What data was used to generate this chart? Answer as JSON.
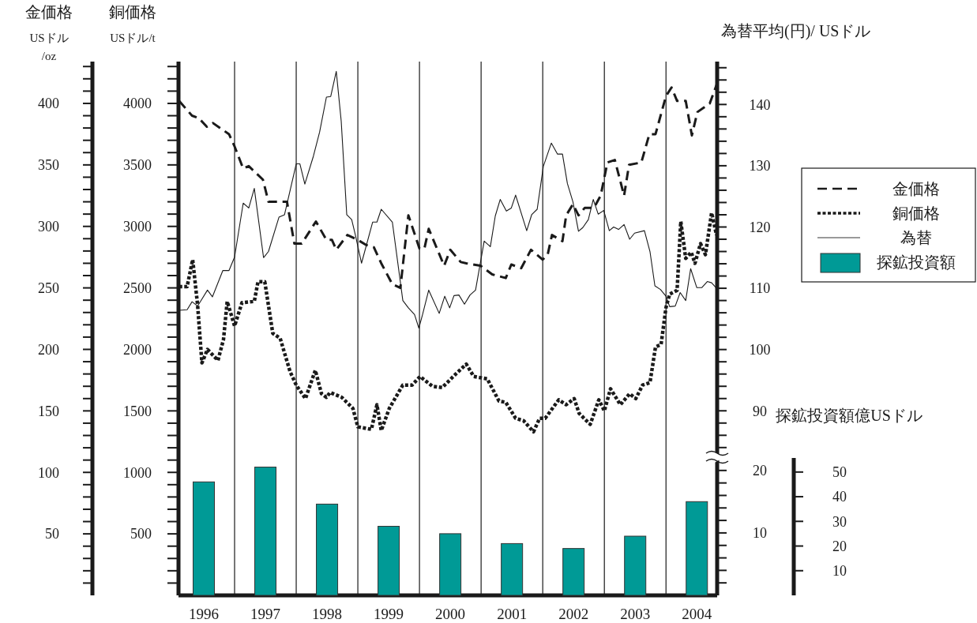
{
  "chart_data": [
    {
      "type": "line",
      "ylabel": "金価格\nUSドル\n/oz",
      "y2label": "銅価格\nUSドル/t",
      "y3label": "為替平均(円)/ USドル",
      "xlim": [
        1996.09,
        2004.83
      ],
      "xticks": [
        {
          "value": 1996.5,
          "label": "1996"
        },
        {
          "value": 1997.5,
          "label": "1997"
        },
        {
          "value": 1998.5,
          "label": "1998"
        },
        {
          "value": 1999.5,
          "label": "1999"
        },
        {
          "value": 2000.5,
          "label": "2000"
        },
        {
          "value": 2001.5,
          "label": "2001"
        },
        {
          "value": 2002.5,
          "label": "2002"
        },
        {
          "value": 2003.5,
          "label": "2003"
        },
        {
          "value": 2004.5,
          "label": "2004"
        }
      ],
      "ylim": [
        0,
        434
      ],
      "yticks": [
        {
          "value": 10,
          "label": null
        },
        {
          "value": 20,
          "label": null
        },
        {
          "value": 30,
          "label": null
        },
        {
          "value": 40,
          "label": null
        },
        50,
        {
          "value": 60,
          "label": null
        },
        {
          "value": 70,
          "label": null
        },
        {
          "value": 80,
          "label": null
        },
        {
          "value": 90,
          "label": null
        },
        100,
        {
          "value": 110,
          "label": null
        },
        {
          "value": 120,
          "label": null
        },
        {
          "value": 130,
          "label": null
        },
        {
          "value": 140,
          "label": null
        },
        150,
        {
          "value": 160,
          "label": null
        },
        {
          "value": 170,
          "label": null
        },
        {
          "value": 180,
          "label": null
        },
        {
          "value": 190,
          "label": null
        },
        200,
        {
          "value": 210,
          "label": null
        },
        {
          "value": 220,
          "label": null
        },
        {
          "value": 230,
          "label": null
        },
        {
          "value": 240,
          "label": null
        },
        250,
        {
          "value": 260,
          "label": null
        },
        {
          "value": 270,
          "label": null
        },
        {
          "value": 280,
          "label": null
        },
        {
          "value": 290,
          "label": null
        },
        300,
        {
          "value": 310,
          "label": null
        },
        {
          "value": 320,
          "label": null
        },
        {
          "value": 330,
          "label": null
        },
        {
          "value": 340,
          "label": null
        },
        350,
        {
          "value": 360,
          "label": null
        },
        {
          "value": 370,
          "label": null
        },
        {
          "value": 380,
          "label": null
        },
        {
          "value": 390,
          "label": null
        },
        400,
        {
          "value": 410,
          "label": null
        },
        {
          "value": 420,
          "label": null
        },
        {
          "value": 430,
          "label": null
        }
      ],
      "y2lim": [
        0,
        4340
      ],
      "y2ticks": [
        {
          "value": 100,
          "label": null
        },
        {
          "value": 200,
          "label": null
        },
        {
          "value": 300,
          "label": null
        },
        {
          "value": 400,
          "label": null
        },
        500,
        {
          "value": 600,
          "label": null
        },
        {
          "value": 700,
          "label": null
        },
        {
          "value": 800,
          "label": null
        },
        {
          "value": 900,
          "label": null
        },
        1000,
        {
          "value": 1100,
          "label": null
        },
        {
          "value": 1200,
          "label": null
        },
        {
          "value": 1300,
          "label": null
        },
        {
          "value": 1400,
          "label": null
        },
        1500,
        {
          "value": 1600,
          "label": null
        },
        {
          "value": 1700,
          "label": null
        },
        {
          "value": 1800,
          "label": null
        },
        {
          "value": 1900,
          "label": null
        },
        2000,
        {
          "value": 2100,
          "label": null
        },
        {
          "value": 2200,
          "label": null
        },
        {
          "value": 2300,
          "label": null
        },
        {
          "value": 2400,
          "label": null
        },
        2500,
        {
          "value": 2600,
          "label": null
        },
        {
          "value": 2700,
          "label": null
        },
        {
          "value": 2800,
          "label": null
        },
        {
          "value": 2900,
          "label": null
        },
        3000,
        {
          "value": 3100,
          "label": null
        },
        {
          "value": 3200,
          "label": null
        },
        {
          "value": 3300,
          "label": null
        },
        {
          "value": 3400,
          "label": null
        },
        3500,
        {
          "value": 3600,
          "label": null
        },
        {
          "value": 3700,
          "label": null
        },
        {
          "value": 3800,
          "label": null
        },
        {
          "value": 3900,
          "label": null
        },
        4000,
        {
          "value": 4100,
          "label": null
        },
        {
          "value": 4200,
          "label": null
        },
        {
          "value": 4300,
          "label": null
        }
      ],
      "y3lim": [
        82.3,
        147
      ],
      "y3ticks": [
        {
          "value": 84,
          "label": null
        },
        {
          "value": 86,
          "label": null
        },
        {
          "value": 88,
          "label": null
        },
        90,
        {
          "value": 92,
          "label": null
        },
        {
          "value": 94,
          "label": null
        },
        {
          "value": 96,
          "label": null
        },
        {
          "value": 98,
          "label": null
        },
        100,
        {
          "value": 102,
          "label": null
        },
        {
          "value": 104,
          "label": null
        },
        {
          "value": 106,
          "label": null
        },
        {
          "value": 108,
          "label": null
        },
        110,
        {
          "value": 112,
          "label": null
        },
        {
          "value": 114,
          "label": null
        },
        {
          "value": 116,
          "label": null
        },
        {
          "value": 118,
          "label": null
        },
        120,
        {
          "value": 122,
          "label": null
        },
        {
          "value": 124,
          "label": null
        },
        {
          "value": 126,
          "label": null
        },
        {
          "value": 128,
          "label": null
        },
        130,
        {
          "value": 132,
          "label": null
        },
        {
          "value": 134,
          "label": null
        },
        {
          "value": 136,
          "label": null
        },
        {
          "value": 138,
          "label": null
        },
        140,
        {
          "value": 142,
          "label": null
        },
        {
          "value": 144,
          "label": null
        },
        {
          "value": 146,
          "label": null
        }
      ],
      "ref_lines": [
        {
          "axis": "x",
          "value": 1997,
          "color": "#1a1a1a"
        },
        {
          "axis": "x",
          "value": 1998,
          "color": "#1a1a1a"
        },
        {
          "axis": "x",
          "value": 1999,
          "color": "#1a1a1a"
        },
        {
          "axis": "x",
          "value": 2000,
          "color": "#1a1a1a"
        },
        {
          "axis": "x",
          "value": 2001,
          "color": "#1a1a1a"
        },
        {
          "axis": "x",
          "value": 2002,
          "color": "#1a1a1a"
        },
        {
          "axis": "x",
          "value": 2003,
          "color": "#1a1a1a"
        },
        {
          "axis": "x",
          "value": 2004,
          "color": "#1a1a1a"
        }
      ],
      "legend": "right",
      "series": [
        {
          "name": "金価格",
          "line_style": "dashed",
          "color": "#1a1a1a",
          "x": [
            1996.1,
            1996.31,
            1996.42,
            1996.55,
            1996.65,
            1996.91,
            1997.0,
            1997.14,
            1997.23,
            1997.46,
            1997.55,
            1997.85,
            1997.97,
            1998.09,
            1998.32,
            1998.49,
            1998.58,
            1998.65,
            1998.83,
            1999.0,
            1999.13,
            1999.26,
            1999.38,
            1999.56,
            1999.69,
            1999.82,
            2000.0,
            2000.08,
            2000.15,
            2000.4,
            2000.5,
            2000.67,
            2000.76,
            2000.99,
            2001.18,
            2001.4,
            2001.49,
            2001.65,
            2001.81,
            2002.0,
            2002.08,
            2002.15,
            2002.32,
            2002.38,
            2002.49,
            2002.58,
            2002.68,
            2002.83,
            2002.94,
            2003.05,
            2003.17,
            2003.32,
            2003.4,
            2003.6,
            2003.73,
            2003.83,
            2004.0,
            2004.09,
            2004.18,
            2004.32,
            2004.42,
            2004.51,
            2004.71,
            2004.82
          ],
          "values": [
            402,
            390,
            388,
            381,
            384,
            375,
            365,
            347,
            349,
            338,
            320,
            320,
            286,
            286,
            304,
            289,
            289,
            281,
            293,
            289,
            285,
            283,
            270,
            253,
            250,
            309,
            282,
            282,
            298,
            268,
            281,
            271,
            270,
            268,
            261,
            258,
            269,
            266,
            281,
            273,
            277,
            293,
            288,
            309,
            318,
            309,
            315,
            315,
            325,
            352,
            354,
            325,
            350,
            352,
            375,
            375,
            406,
            413,
            402,
            402,
            374,
            393,
            400,
            415
          ]
        },
        {
          "name": "銅価格",
          "axis": "y2",
          "line_style": "dotted",
          "color": "#1a1a1a",
          "x": [
            1996.1,
            1996.23,
            1996.32,
            1996.4,
            1996.47,
            1996.56,
            1996.73,
            1996.82,
            1996.88,
            1997.0,
            1997.12,
            1997.32,
            1997.38,
            1997.49,
            1997.62,
            1997.74,
            1997.9,
            1998.0,
            1998.15,
            1998.31,
            1998.41,
            1998.49,
            1998.55,
            1998.74,
            1998.92,
            1999.0,
            1999.22,
            1999.31,
            1999.38,
            1999.51,
            1999.73,
            1999.88,
            2000.01,
            2000.21,
            2000.37,
            2000.59,
            2000.76,
            2000.88,
            2001.1,
            2001.29,
            2001.4,
            2001.56,
            2001.69,
            2001.85,
            2001.95,
            2002.04,
            2002.26,
            2002.38,
            2002.51,
            2002.59,
            2002.77,
            2002.91,
            2003.0,
            2003.1,
            2003.26,
            2003.41,
            2003.51,
            2003.62,
            2003.74,
            2003.83,
            2003.92,
            2004.0,
            2004.06,
            2004.18,
            2004.24,
            2004.32,
            2004.41,
            2004.47,
            2004.56,
            2004.64,
            2004.74,
            2004.82
          ],
          "values": [
            2510,
            2510,
            2730,
            2360,
            1890,
            2000,
            1910,
            2080,
            2390,
            2190,
            2380,
            2390,
            2550,
            2550,
            2130,
            2090,
            1820,
            1710,
            1600,
            1830,
            1640,
            1610,
            1650,
            1610,
            1520,
            1370,
            1350,
            1550,
            1340,
            1520,
            1710,
            1710,
            1780,
            1700,
            1690,
            1800,
            1880,
            1780,
            1760,
            1580,
            1570,
            1440,
            1420,
            1330,
            1440,
            1440,
            1590,
            1550,
            1600,
            1480,
            1390,
            1590,
            1500,
            1680,
            1550,
            1640,
            1600,
            1710,
            1730,
            2020,
            2040,
            2340,
            2450,
            2480,
            3040,
            2740,
            2790,
            2700,
            2860,
            2770,
            3110,
            2930
          ]
        },
        {
          "name": "為替",
          "axis": "y3",
          "line_style": "solid",
          "color": "#1a1a1a",
          "x": [
            1996.1,
            1996.23,
            1996.31,
            1996.4,
            1996.56,
            1996.64,
            1996.81,
            1996.91,
            1997.0,
            1997.14,
            1997.23,
            1997.32,
            1997.47,
            1997.55,
            1997.72,
            1997.81,
            1998.0,
            1998.06,
            1998.14,
            1998.28,
            1998.38,
            1998.49,
            1998.56,
            1998.65,
            1998.73,
            1998.82,
            1998.9,
            1998.96,
            1999.06,
            1999.24,
            1999.31,
            1999.38,
            1999.56,
            1999.73,
            1999.82,
            1999.92,
            1999.99,
            2000.05,
            2000.15,
            2000.32,
            2000.41,
            2000.49,
            2000.56,
            2000.64,
            2000.73,
            2000.82,
            2000.91,
            2001.05,
            2001.15,
            2001.23,
            2001.31,
            2001.41,
            2001.49,
            2001.56,
            2001.74,
            2001.82,
            2001.91,
            2002.01,
            2002.14,
            2002.24,
            2002.32,
            2002.4,
            2002.49,
            2002.58,
            2002.65,
            2002.74,
            2002.82,
            2002.9,
            2002.99,
            2003.08,
            2003.15,
            2003.23,
            2003.32,
            2003.41,
            2003.49,
            2003.65,
            2003.74,
            2003.82,
            2003.91,
            2004.0,
            2004.06,
            2004.15,
            2004.23,
            2004.32,
            2004.4,
            2004.5,
            2004.58,
            2004.67,
            2004.74,
            2004.82
          ],
          "values": [
            106.4,
            106.5,
            107.8,
            107.1,
            109.7,
            108.6,
            112.9,
            112.9,
            115.1,
            123.9,
            123.1,
            126.3,
            115.0,
            116.0,
            121.6,
            122.0,
            130.3,
            130.3,
            127.0,
            131.6,
            135.5,
            141.2,
            141.3,
            145.4,
            137.3,
            122.0,
            121.2,
            118.7,
            114.1,
            120.8,
            120.8,
            122.9,
            120.8,
            108.0,
            106.8,
            105.7,
            103.5,
            105.7,
            109.7,
            105.9,
            108.7,
            106.8,
            108.8,
            108.9,
            107.4,
            108.9,
            109.7,
            117.7,
            116.8,
            121.8,
            124.5,
            122.6,
            123.1,
            125.2,
            119.4,
            122.0,
            122.9,
            129.9,
            133.7,
            131.9,
            131.9,
            127.1,
            124.1,
            119.3,
            119.9,
            121.2,
            124.5,
            122.1,
            122.7,
            119.4,
            120.0,
            119.6,
            120.4,
            118.0,
            119.0,
            119.4,
            116.0,
            110.4,
            109.8,
            108.7,
            107.0,
            107.1,
            109.3,
            108.0,
            113.2,
            110.1,
            110.1,
            111.1,
            110.9,
            110.0
          ]
        }
      ]
    },
    {
      "type": "bar",
      "ylabel": "探鉱投資額億USドル",
      "xlim": [
        1996.09,
        2004.83
      ],
      "tick_labels": "y",
      "legend": "right",
      "ylim": [
        0,
        55.7
      ],
      "yticks": [
        10,
        20,
        30,
        40,
        50
      ],
      "y2lim": [
        0,
        22
      ],
      "y2ticks": [
        {
          "value": 2,
          "label": null
        },
        {
          "value": 4,
          "label": null
        },
        {
          "value": 6,
          "label": null
        },
        {
          "value": 8,
          "label": null
        },
        10,
        {
          "value": 12,
          "label": null
        },
        {
          "value": 14,
          "label": null
        },
        {
          "value": 16,
          "label": null
        },
        {
          "value": 18,
          "label": null
        },
        20
      ],
      "series": [
        {
          "name": "探鉱投資額",
          "color": "#009a96",
          "x": [
            1996.5,
            1997.5,
            1998.5,
            1999.5,
            2000.5,
            2001.5,
            2002.5,
            2003.5,
            2004.5
          ],
          "values": [
            46,
            52,
            37,
            28,
            25,
            21,
            19,
            24,
            38
          ]
        }
      ]
    }
  ]
}
